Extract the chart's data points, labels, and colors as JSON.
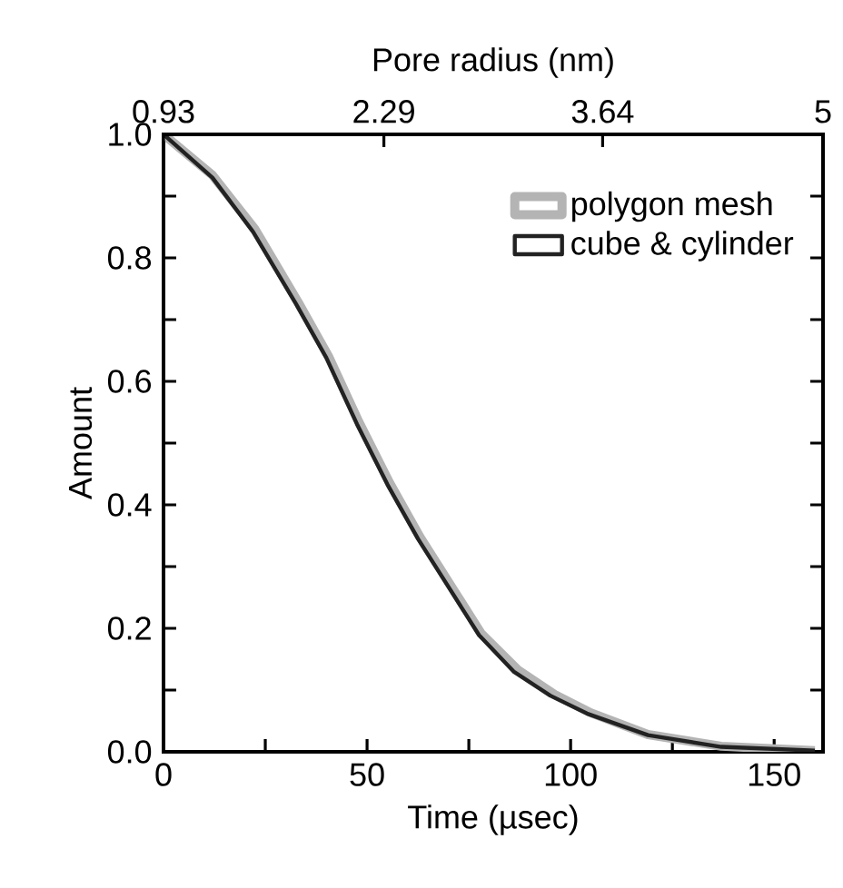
{
  "chart_data": {
    "type": "line",
    "xlabel": "Time (µsec)",
    "ylabel": "Amount",
    "x2label": "Pore radius (nm)",
    "xlim": [
      0,
      162
    ],
    "ylim": [
      0,
      1
    ],
    "x2lim": [
      0.93,
      5
    ],
    "xticks": [
      0,
      {
        "value": 25,
        "label": null
      },
      50,
      {
        "value": 75,
        "label": null
      },
      100,
      {
        "value": 125,
        "label": null
      },
      150
    ],
    "yticks": [
      {
        "value": 0,
        "label": "0.0"
      },
      {
        "value": 0.1,
        "label": null
      },
      {
        "value": 0.2,
        "label": "0.2"
      },
      {
        "value": 0.3,
        "label": null
      },
      {
        "value": 0.4,
        "label": "0.4"
      },
      {
        "value": 0.5,
        "label": null
      },
      {
        "value": 0.6,
        "label": "0.6"
      },
      {
        "value": 0.7,
        "label": null
      },
      {
        "value": 0.8,
        "label": "0.8"
      },
      {
        "value": 0.9,
        "label": null
      },
      {
        "value": 1.0,
        "label": "1.0"
      }
    ],
    "x2ticks": [
      0.93,
      2.29,
      3.64,
      5
    ],
    "grid": false,
    "legend": "top right",
    "marker": "none",
    "line_style": "solid",
    "series": [
      {
        "name": "polygon mesh",
        "color": "#b4b4b4",
        "x": [
          0,
          12,
          22.5,
          33,
          40.5,
          48,
          55.5,
          63,
          70.5,
          78,
          87,
          96,
          105,
          119,
          137,
          160
        ],
        "values": [
          1.0,
          0.934,
          0.846,
          0.729,
          0.641,
          0.534,
          0.436,
          0.348,
          0.27,
          0.192,
          0.133,
          0.093,
          0.063,
          0.028,
          0.009,
          0.002
        ]
      },
      {
        "name": "cube & cylinder",
        "color": "#222222",
        "x": [
          0,
          12,
          22,
          32.5,
          40,
          47.5,
          55,
          62.5,
          70,
          77.5,
          86,
          95,
          104,
          119,
          137,
          160
        ],
        "values": [
          1.0,
          0.93,
          0.842,
          0.726,
          0.638,
          0.531,
          0.433,
          0.345,
          0.267,
          0.189,
          0.13,
          0.091,
          0.062,
          0.027,
          0.008,
          0.002
        ]
      }
    ]
  }
}
